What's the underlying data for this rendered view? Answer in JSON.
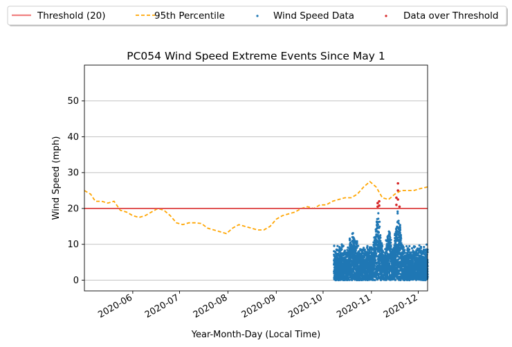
{
  "chart_data": {
    "type": "scatter",
    "title": "PC054 Wind Speed Extreme Events Since May 1",
    "xlabel": "Year-Month-Day (Local Time)",
    "ylabel": "Wind Speed (mph)",
    "xlim": [
      "2020-05-01",
      "2020-12-07"
    ],
    "ylim": [
      -3,
      60
    ],
    "x_ticks": [
      "2020-06",
      "2020-07",
      "2020-08",
      "2020-09",
      "2020-10",
      "2020-11",
      "2020-12"
    ],
    "x_tick_dates": [
      "2020-06-01",
      "2020-07-01",
      "2020-08-01",
      "2020-09-01",
      "2020-10-01",
      "2020-11-01",
      "2020-12-01"
    ],
    "y_ticks": [
      0,
      10,
      20,
      30,
      40,
      50
    ],
    "grid": "horizontal",
    "legend_position": "top",
    "colors": {
      "threshold": "#f08080",
      "percentile": "#ffa500",
      "wind": "#1f77b4",
      "over": "#d62728"
    },
    "threshold": {
      "name": "Threshold (20)",
      "value": 20
    },
    "percentile_95": {
      "name": "95th Percentile",
      "x": [
        "2020-05-01",
        "2020-05-05",
        "2020-05-08",
        "2020-05-12",
        "2020-05-16",
        "2020-05-20",
        "2020-05-24",
        "2020-05-28",
        "2020-06-01",
        "2020-06-05",
        "2020-06-09",
        "2020-06-13",
        "2020-06-17",
        "2020-06-21",
        "2020-06-25",
        "2020-06-29",
        "2020-07-03",
        "2020-07-07",
        "2020-07-11",
        "2020-07-15",
        "2020-07-19",
        "2020-07-23",
        "2020-07-27",
        "2020-07-31",
        "2020-08-04",
        "2020-08-08",
        "2020-08-12",
        "2020-08-16",
        "2020-08-20",
        "2020-08-24",
        "2020-08-28",
        "2020-09-01",
        "2020-09-05",
        "2020-09-09",
        "2020-09-13",
        "2020-09-17",
        "2020-09-21",
        "2020-09-25",
        "2020-09-29",
        "2020-10-03",
        "2020-10-07",
        "2020-10-11",
        "2020-10-15",
        "2020-10-19",
        "2020-10-23",
        "2020-10-27",
        "2020-10-31",
        "2020-11-04",
        "2020-11-08",
        "2020-11-12",
        "2020-11-16",
        "2020-11-20",
        "2020-11-24",
        "2020-11-28",
        "2020-12-02",
        "2020-12-07"
      ],
      "y": [
        25,
        24,
        22,
        22,
        21.5,
        22,
        19.5,
        19,
        18,
        17.5,
        18,
        19,
        20,
        19.5,
        18,
        16,
        15.5,
        16,
        16,
        15.8,
        14.5,
        14,
        13.5,
        13,
        14.5,
        15.5,
        15,
        14.5,
        14,
        14,
        15,
        17,
        18,
        18.5,
        19,
        20,
        20.5,
        20,
        21,
        21,
        22,
        22.5,
        23,
        23,
        24,
        26,
        27.5,
        26,
        23,
        22.5,
        24,
        25,
        25,
        25,
        25.5,
        26
      ]
    },
    "wind_speed_data": {
      "name": "Wind Speed Data",
      "start": "2020-10-08",
      "end": "2020-12-07",
      "typical_range": [
        0,
        10
      ],
      "max": 20
    },
    "over_threshold": {
      "name": "Data over Threshold",
      "x": [
        "2020-11-05",
        "2020-11-05",
        "2020-11-06",
        "2020-11-06",
        "2020-11-17",
        "2020-11-17",
        "2020-11-18",
        "2020-11-18",
        "2020-11-18",
        "2020-11-19"
      ],
      "y": [
        20.5,
        21.5,
        22,
        20.8,
        21,
        23,
        27,
        25,
        22.5,
        20.5
      ]
    },
    "legend": [
      "Threshold (20)",
      "95th Percentile",
      "Wind Speed Data",
      "Data over Threshold"
    ]
  }
}
